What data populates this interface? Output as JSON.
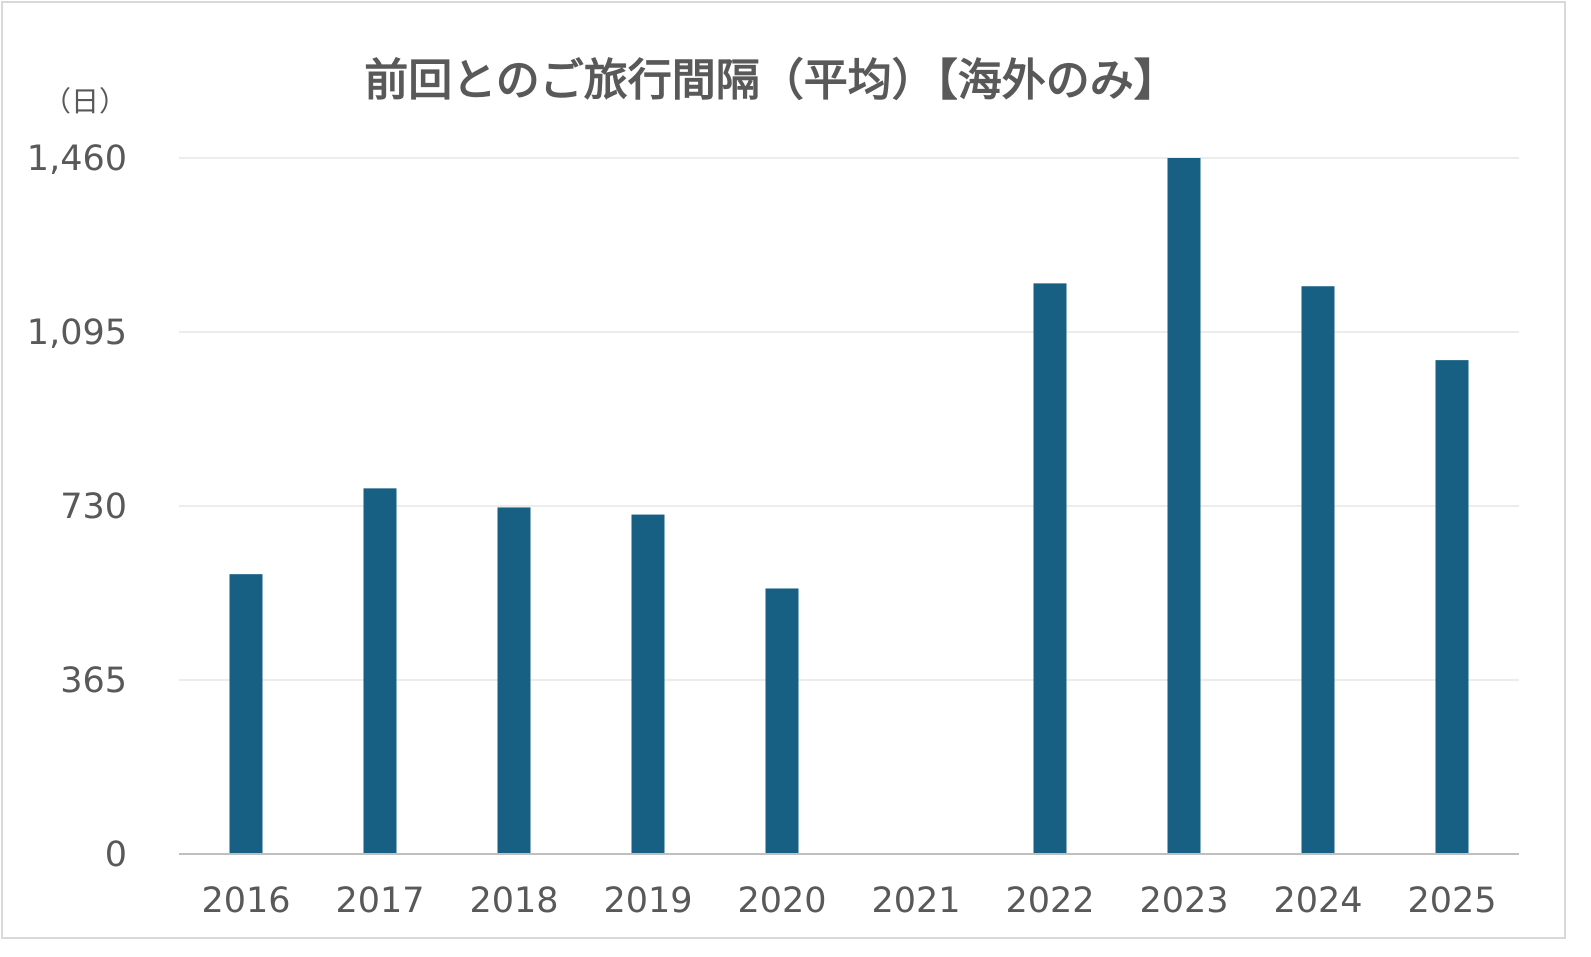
{
  "chart_data": {
    "type": "bar",
    "title": "前回とのご旅行間隔（平均）【海外のみ】",
    "ylabel": "（日）",
    "xlabel": "",
    "categories": [
      "2016",
      "2017",
      "2018",
      "2019",
      "2020",
      "2021",
      "2022",
      "2023",
      "2024",
      "2025"
    ],
    "values": [
      587,
      767,
      727,
      712,
      557,
      null,
      1197,
      1460,
      1191,
      1036
    ],
    "ylim": [
      0,
      1460
    ],
    "yticks": [
      0,
      365,
      730,
      1095,
      1460
    ],
    "ytick_labels": [
      "0",
      "365",
      "730",
      "1,095",
      "1,460"
    ],
    "grid": true,
    "legend": "none",
    "bar_color": "#175F83"
  }
}
